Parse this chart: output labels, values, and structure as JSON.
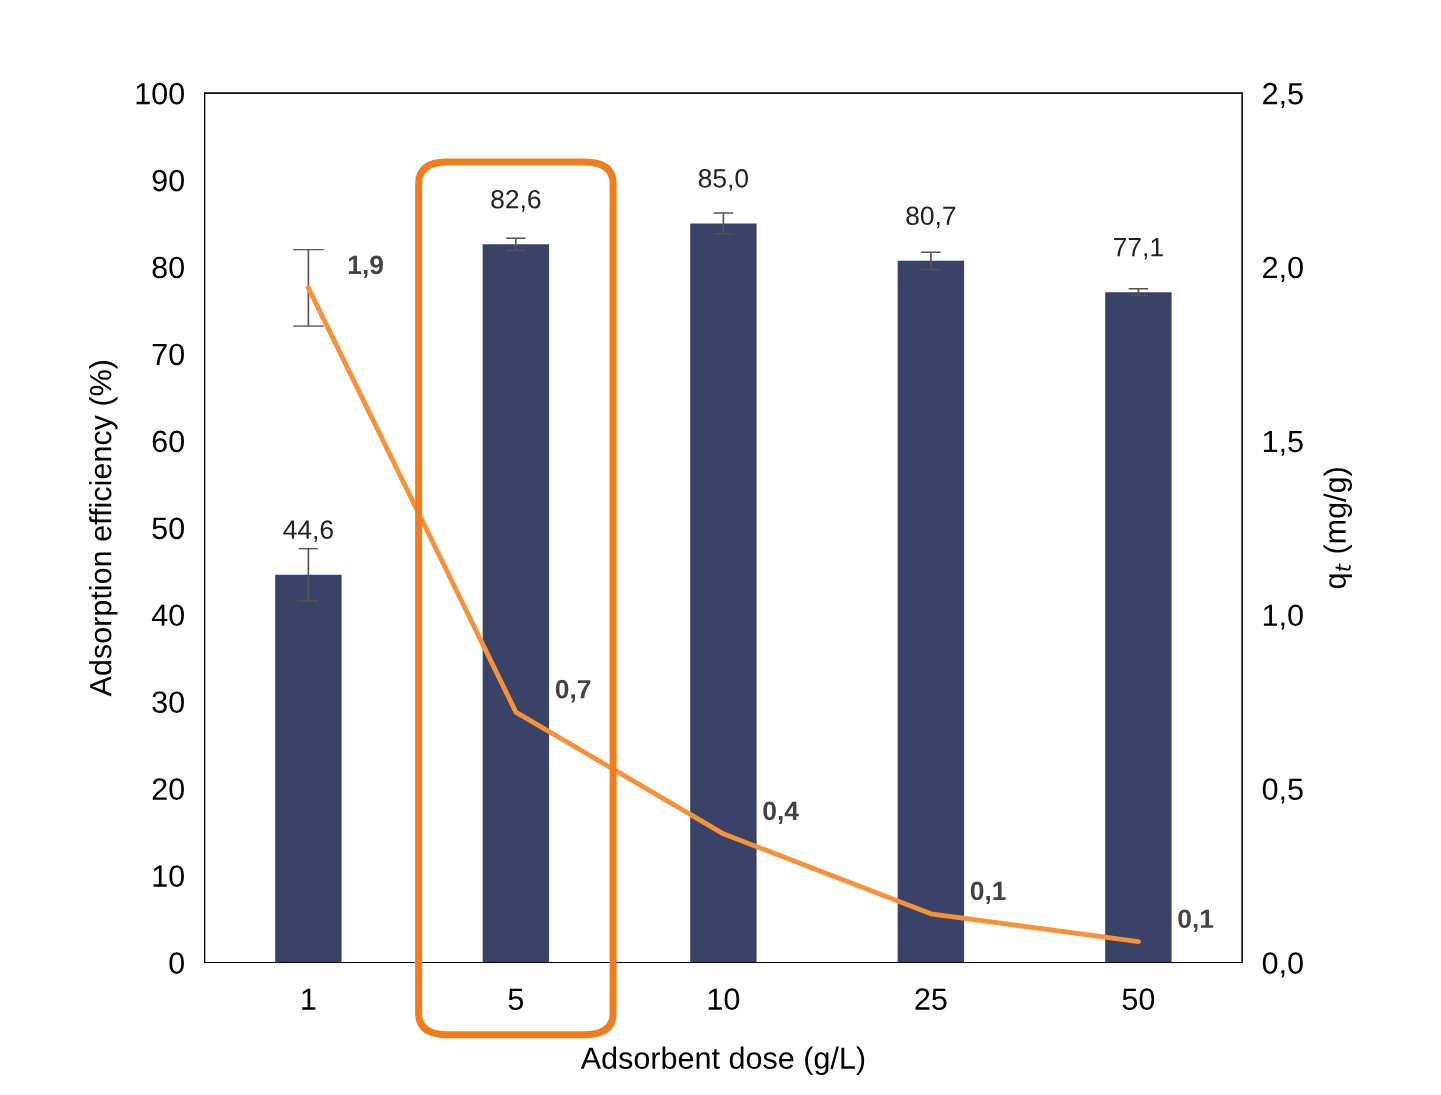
{
  "chart_data": {
    "type": "bar",
    "categories": [
      "1",
      "5",
      "10",
      "25",
      "50"
    ],
    "xlabel": "Adsorbent dose (g/L)",
    "ylabel": "Adsorption efficiency (%)",
    "y2label": "q$_{t}$ (mg/g)",
    "ylim": [
      0,
      100
    ],
    "yticks": [
      0,
      10,
      20,
      30,
      40,
      50,
      60,
      70,
      80,
      90,
      100
    ],
    "y2lim": [
      0,
      2.5
    ],
    "y2ticks": [
      {
        "value": 0,
        "label": "0,0"
      },
      {
        "value": 0.5,
        "label": "0,5"
      },
      {
        "value": 1,
        "label": "1,0"
      },
      {
        "value": 1.5,
        "label": "1,5"
      },
      {
        "value": 2,
        "label": "2,0"
      },
      {
        "value": 2.5,
        "label": "2,5"
      }
    ],
    "grid": false,
    "series": [
      {
        "color": "#394267",
        "values": [
          44.6,
          82.6,
          85.0,
          80.7,
          77.1
        ],
        "errors": [
          3.0,
          0.7,
          1.2,
          1.0,
          0.4
        ],
        "value_labels": [
          "44,6",
          "82,6",
          "85,0",
          "80,7",
          "77,1"
        ]
      },
      {
        "type": "line",
        "axis": "y2",
        "color": "#f7923a",
        "values": [
          1.94,
          0.72,
          0.37,
          0.14,
          0.06
        ],
        "errors": [
          0.11,
          null,
          null,
          null,
          null
        ],
        "value_labels": [
          "1,9",
          "0,7",
          "0,4",
          "0,1",
          "0,1"
        ]
      }
    ]
  }
}
